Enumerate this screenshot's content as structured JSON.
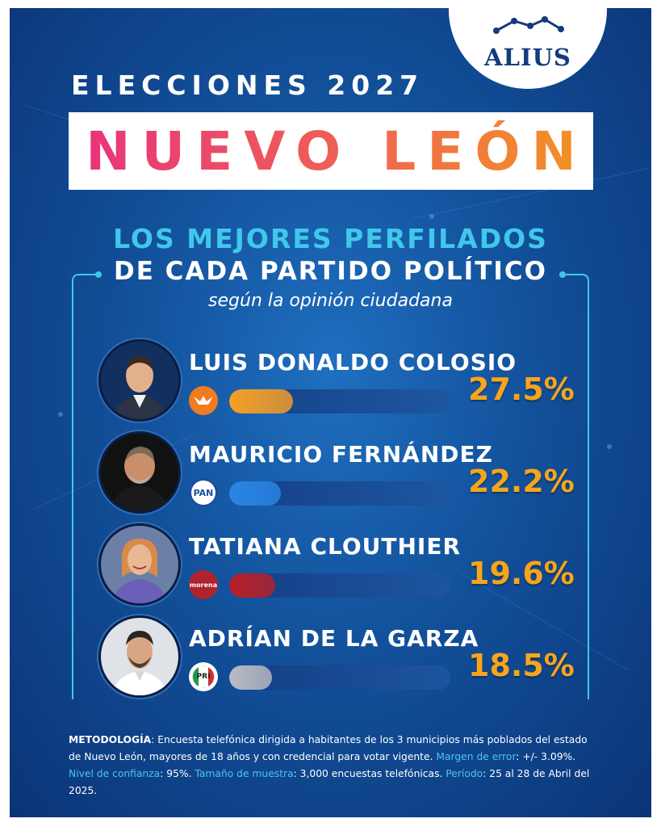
{
  "brand": {
    "logo_text": "ALIUS"
  },
  "header": {
    "kicker": "ELECCIONES 2027",
    "title": "NUEVO LEÓN",
    "subtitle_line1": "LOS MEJORES PERFILADOS",
    "subtitle_line2": "DE CADA PARTIDO POLÍTICO",
    "subtitle_line3": "según la opinión ciudadana"
  },
  "colors": {
    "accent_cyan": "#40c7ea",
    "percent_orange": "#f6a51c",
    "title_gradient": [
      "#e8337c",
      "#f39324"
    ]
  },
  "candidates": [
    {
      "name": "LUIS DONALDO COLOSIO",
      "party": "MOVIMIENTO CIUDADANO",
      "party_icon": "mc-eagle-icon",
      "percent_label": "27.5%",
      "bar_color": "#f5a028"
    },
    {
      "name": "MAURICIO FERNÁNDEZ",
      "party": "PAN",
      "party_icon": "pan-icon",
      "percent_label": "22.2%",
      "bar_color": "#2a86e6"
    },
    {
      "name": "TATIANA CLOUTHIER",
      "party": "morena",
      "party_icon": "morena-icon",
      "percent_label": "19.6%",
      "bar_color": "#b8202a"
    },
    {
      "name": "ADRÍAN DE LA GARZA",
      "party": "PRI",
      "party_icon": "pri-icon",
      "percent_label": "18.5%",
      "bar_color": "#b9bcc2"
    }
  ],
  "chart_data": {
    "type": "bar",
    "title": "NUEVO LEÓN",
    "categories": [
      "LUIS DONALDO COLOSIO",
      "MAURICIO FERNÁNDEZ",
      "TATIANA CLOUTHIER",
      "ADRÍAN DE LA GARZA"
    ],
    "values": [
      27.5,
      22.2,
      19.6,
      18.5
    ],
    "unit": "%",
    "xlabel": "",
    "ylabel": "",
    "ylim": [
      0,
      100
    ]
  },
  "methodology": {
    "label": "METODOLOGÍA",
    "text1": ": Encuesta telefónica dirigida a habitantes de los 3 municipios más poblados del estado de Nuevo León, mayores de 18 años y con credencial para votar vigente. ",
    "margin_label": "Margen de error",
    "margin_value": ": +/- 3.09%. ",
    "confidence_label": "Nivel de confianza",
    "confidence_value": ": 95%. ",
    "sample_label": "Tamaño de muestra",
    "sample_value": ": 3,000 encuestas telefónicas. ",
    "period_label": "Período",
    "period_value": ": 25 al 28 de Abril del 2025."
  }
}
